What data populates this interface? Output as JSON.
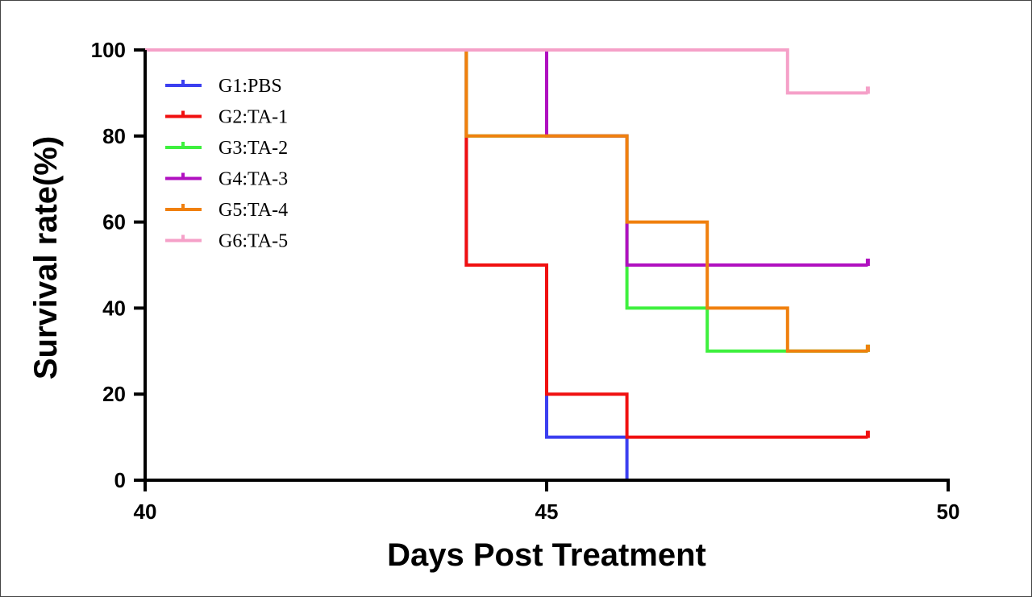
{
  "chart_data": {
    "type": "line",
    "subtype": "kaplan-meier-survival",
    "title": "",
    "xlabel": "Days Post Treatment",
    "ylabel": "Survival rate(%)",
    "xlim": [
      40,
      50
    ],
    "ylim": [
      0,
      100
    ],
    "x_ticks": [
      "40",
      "45",
      "50"
    ],
    "y_ticks": [
      "0",
      "20",
      "40",
      "60",
      "80",
      "100"
    ],
    "legend_position": "top-left",
    "series": [
      {
        "name": "G1:PBS",
        "color": "#3b3ff0",
        "steps": [
          [
            40,
            100
          ],
          [
            44,
            100
          ],
          [
            44,
            50
          ],
          [
            45,
            50
          ],
          [
            45,
            10
          ],
          [
            46,
            10
          ],
          [
            46,
            0
          ]
        ]
      },
      {
        "name": "G2:TA-1",
        "color": "#f01010",
        "steps": [
          [
            40,
            100
          ],
          [
            44,
            100
          ],
          [
            44,
            50
          ],
          [
            45,
            50
          ],
          [
            45,
            20
          ],
          [
            46,
            20
          ],
          [
            46,
            10
          ],
          [
            49,
            10
          ]
        ]
      },
      {
        "name": "G3:TA-2",
        "color": "#3ef03e",
        "steps": [
          [
            40,
            100
          ],
          [
            44,
            100
          ],
          [
            44,
            80
          ],
          [
            46,
            80
          ],
          [
            46,
            40
          ],
          [
            47,
            40
          ],
          [
            47,
            30
          ],
          [
            49,
            30
          ]
        ]
      },
      {
        "name": "G4:TA-3",
        "color": "#b010c0",
        "steps": [
          [
            40,
            100
          ],
          [
            45,
            100
          ],
          [
            45,
            80
          ],
          [
            46,
            80
          ],
          [
            46,
            50
          ],
          [
            49,
            50
          ]
        ]
      },
      {
        "name": "G5:TA-4",
        "color": "#f0800e",
        "steps": [
          [
            40,
            100
          ],
          [
            44,
            100
          ],
          [
            44,
            80
          ],
          [
            46,
            80
          ],
          [
            46,
            60
          ],
          [
            47,
            60
          ],
          [
            47,
            40
          ],
          [
            48,
            40
          ],
          [
            48,
            30
          ],
          [
            49,
            30
          ]
        ]
      },
      {
        "name": "G6:TA-5",
        "color": "#f5a0c8",
        "steps": [
          [
            40,
            100
          ],
          [
            48,
            100
          ],
          [
            48,
            90
          ],
          [
            49,
            90
          ]
        ]
      }
    ],
    "censored_end_markers": true
  }
}
